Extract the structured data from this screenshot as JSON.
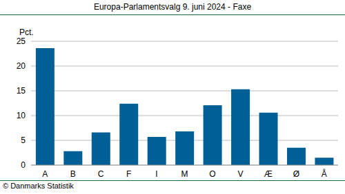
{
  "chart_data": {
    "type": "bar",
    "title": "Europa-Parlamentsvalg 9. juni 2024 - Faxe",
    "y_label": "Pct.",
    "source": "© Danmarks Statistik",
    "categories": [
      "A",
      "B",
      "C",
      "F",
      "I",
      "M",
      "O",
      "V",
      "Æ",
      "Ø",
      "Å"
    ],
    "values": [
      23.6,
      2.8,
      6.6,
      12.4,
      5.7,
      6.8,
      12.1,
      15.3,
      10.6,
      3.5,
      1.5
    ],
    "color": "#005f94",
    "ylim": [
      0,
      25
    ],
    "yticks": [
      0,
      5,
      10,
      15,
      20,
      25
    ],
    "grid": true
  }
}
